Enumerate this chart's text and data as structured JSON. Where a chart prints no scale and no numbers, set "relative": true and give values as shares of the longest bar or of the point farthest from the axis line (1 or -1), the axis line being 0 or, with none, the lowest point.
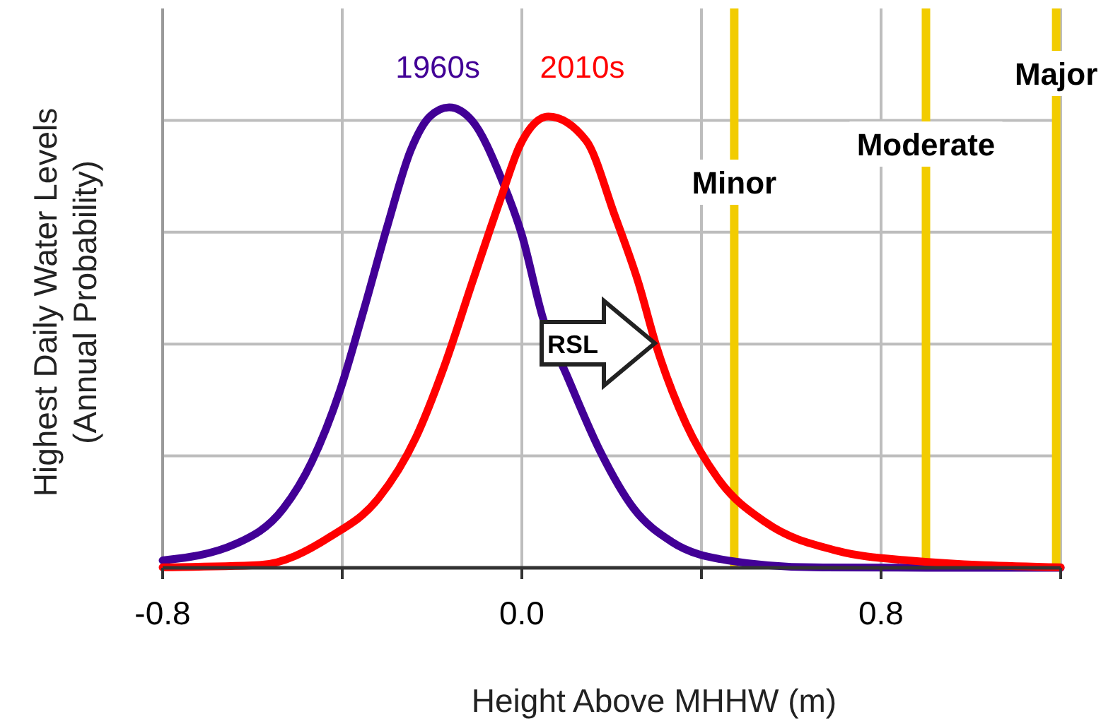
{
  "chart_data": {
    "type": "line",
    "xlabel": "Height Above MHHW (m)",
    "ylabel": "Highest Daily Water Levels\n(Annual Probability)",
    "relative": true,
    "grid": true,
    "marker": "none",
    "line_style": "solid",
    "xlim": [
      -0.8,
      1.2
    ],
    "xticks": [
      -0.8,
      {
        "value": -0.4,
        "label": null
      },
      {
        "value": 0,
        "label": "0.0"
      },
      {
        "value": 0.4,
        "label": null
      },
      0.8,
      {
        "value": 1.2,
        "label": null
      }
    ],
    "series": [
      {
        "name": "1960s",
        "color": "#420096",
        "x": [
          -0.8,
          -0.637,
          -0.531,
          -0.468,
          -0.405,
          -0.352,
          -0.299,
          -0.247,
          -0.205,
          -0.162,
          -0.11,
          -0.046,
          0,
          0.048,
          0.101,
          0.175,
          0.249,
          0.333,
          0.459,
          0.65,
          0.9,
          1.2
        ],
        "values": [
          0.016,
          0.052,
          0.129,
          0.23,
          0.385,
          0.56,
          0.744,
          0.908,
          0.98,
          1,
          0.97,
          0.846,
          0.723,
          0.539,
          0.416,
          0.252,
          0.129,
          0.057,
          0.016,
          0.001,
          0,
          0
        ]
      },
      {
        "name": "2010s",
        "color": "#ff0000",
        "x": [
          -0.8,
          -0.584,
          -0.426,
          -0.32,
          -0.236,
          -0.173,
          -0.11,
          -0.046,
          -0.004,
          0.059,
          0.143,
          0.207,
          0.259,
          0.301,
          0.365,
          0.439,
          0.544,
          0.702,
          0.86,
          1.2
        ],
        "values": [
          0.001,
          0.006,
          0.068,
          0.15,
          0.283,
          0.437,
          0.621,
          0.805,
          0.918,
          0.98,
          0.928,
          0.765,
          0.621,
          0.477,
          0.314,
          0.191,
          0.098,
          0.037,
          0.016,
          0.001
        ]
      }
    ],
    "ref_lines": [
      {
        "axis": "x",
        "value": 0.473,
        "label": "Minor",
        "color": "#f2cc00"
      },
      {
        "axis": "x",
        "value": 0.9,
        "label": "Moderate",
        "color": "#f2cc00"
      },
      {
        "axis": "x",
        "value": 1.19,
        "label": "Major",
        "color": "#f2cc00"
      }
    ],
    "annotations": [
      "RSL"
    ]
  }
}
